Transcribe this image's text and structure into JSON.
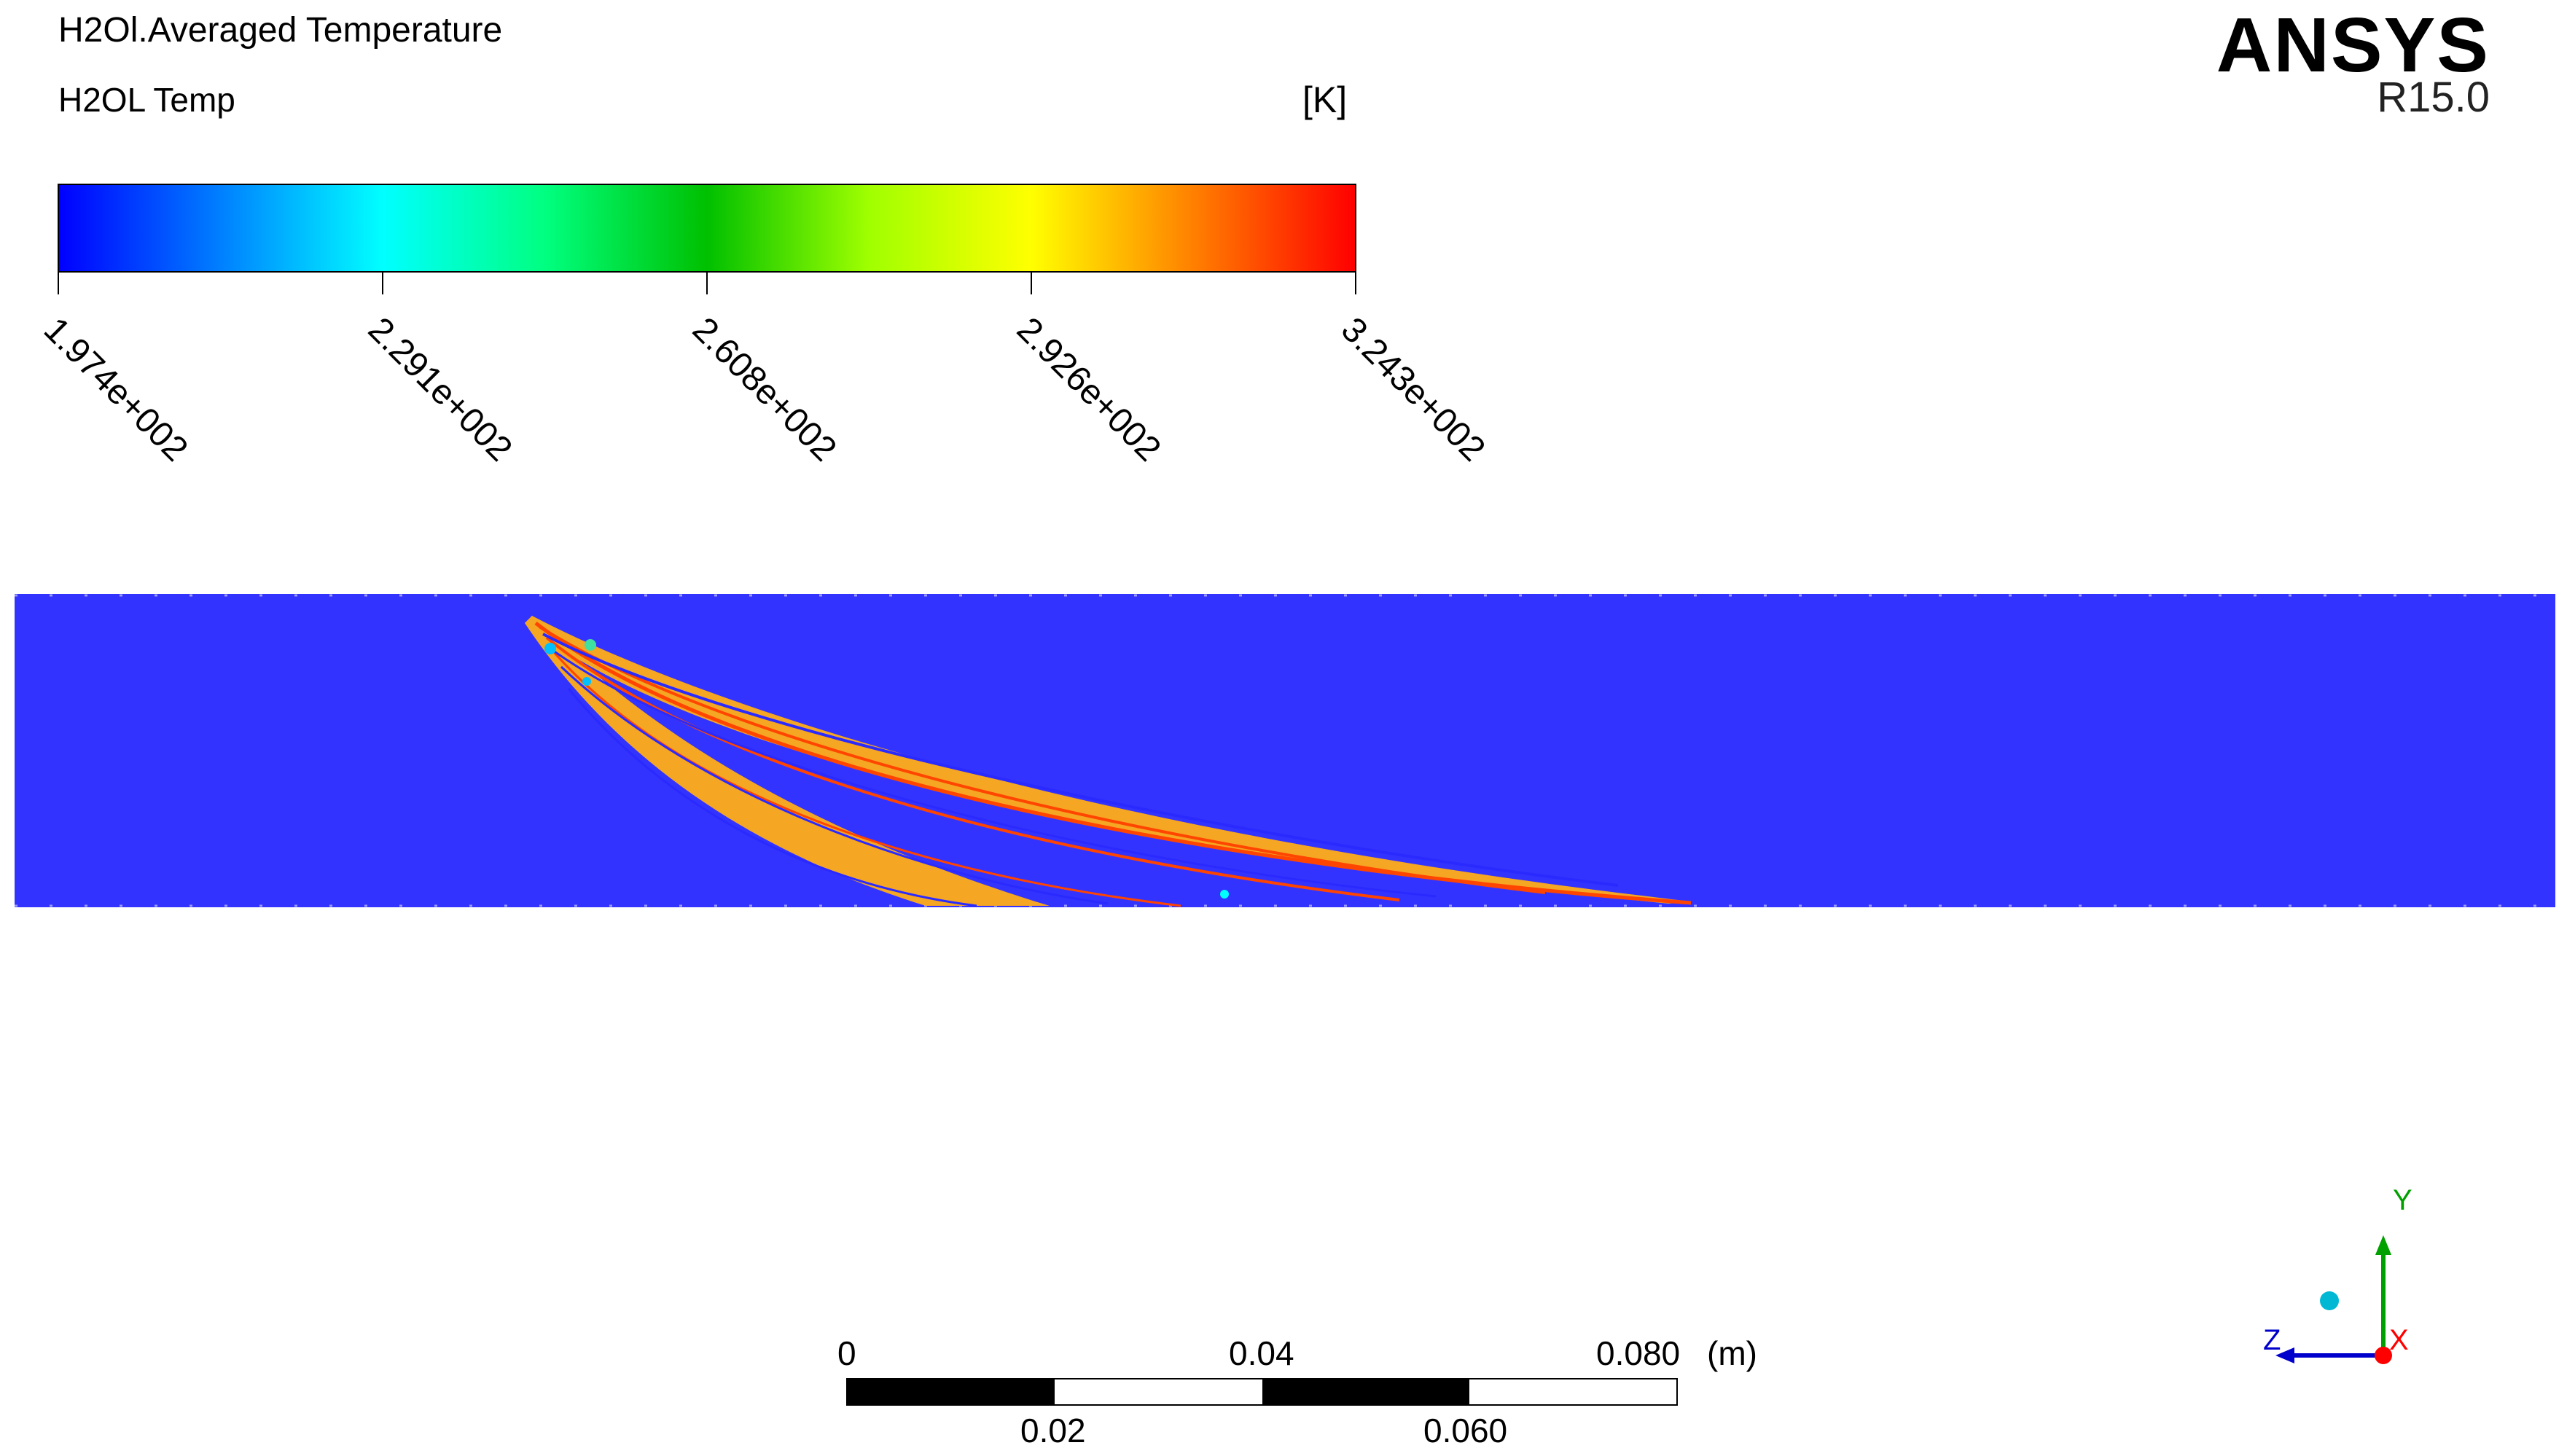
{
  "legend": {
    "title": "H2Ol.Averaged Temperature",
    "variable": "H2OL Temp",
    "units": "[K]",
    "ticks": [
      "1.974e+002",
      "2.291e+002",
      "2.608e+002",
      "2.926e+002",
      "3.243e+002"
    ],
    "colormap": [
      "#0000ff",
      "#00ffff",
      "#00c000",
      "#ffff00",
      "#ff0000"
    ]
  },
  "logo": {
    "name": "ANSYS",
    "version": "R15.0"
  },
  "viewport": {
    "background_color": "#3333ff",
    "trajectory_colors": [
      "#f5a623",
      "#ff4500",
      "#2a2aff"
    ]
  },
  "scale": {
    "top_labels": [
      "0",
      "0.04",
      "0.080"
    ],
    "bottom_labels": [
      "0.02",
      "0.060"
    ],
    "unit": "(m)"
  },
  "triad": {
    "x_label": "X",
    "y_label": "Y",
    "z_label": "Z",
    "x_color": "#ff0000",
    "y_color": "#00a000",
    "z_color": "#0000cc"
  }
}
